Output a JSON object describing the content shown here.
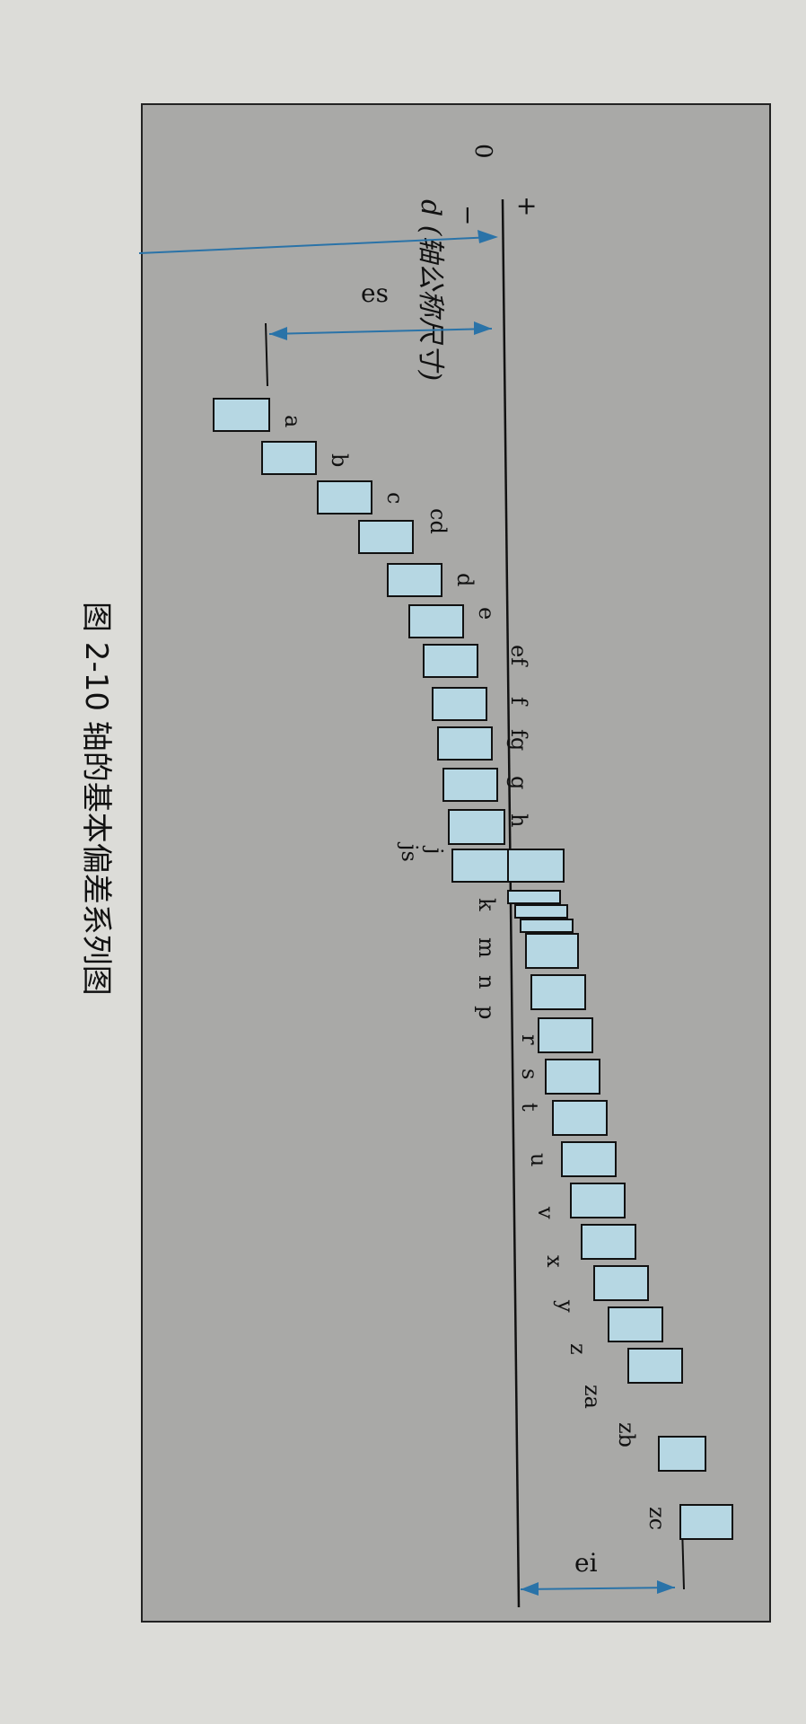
{
  "figure": {
    "caption": "图 2-10   轴的基本偏差系列图",
    "zero_label": "0",
    "plus_sign": "+",
    "minus_sign": "−",
    "dimension_label": "d (轴公称尺寸)",
    "es_label": "es",
    "ei_label": "ei",
    "upper_labels": [
      "a",
      "b",
      "c",
      "cd",
      "d",
      "e",
      "ef",
      "f",
      "fg",
      "g",
      "h"
    ],
    "js_labels": [
      "j",
      "js"
    ],
    "lower_labels_group1": [
      "k",
      "m",
      "n",
      "p"
    ],
    "lower_labels_group2": [
      "r",
      "s",
      "t",
      "u",
      "v",
      "x",
      "y",
      "z",
      "za",
      "zb",
      "zc"
    ]
  },
  "colors": {
    "page": "#dcdcd8",
    "panel": "#a9a9a7",
    "bar_fill": "#b6d7e3",
    "stroke": "#111111",
    "arrow": "#2a73a8"
  }
}
